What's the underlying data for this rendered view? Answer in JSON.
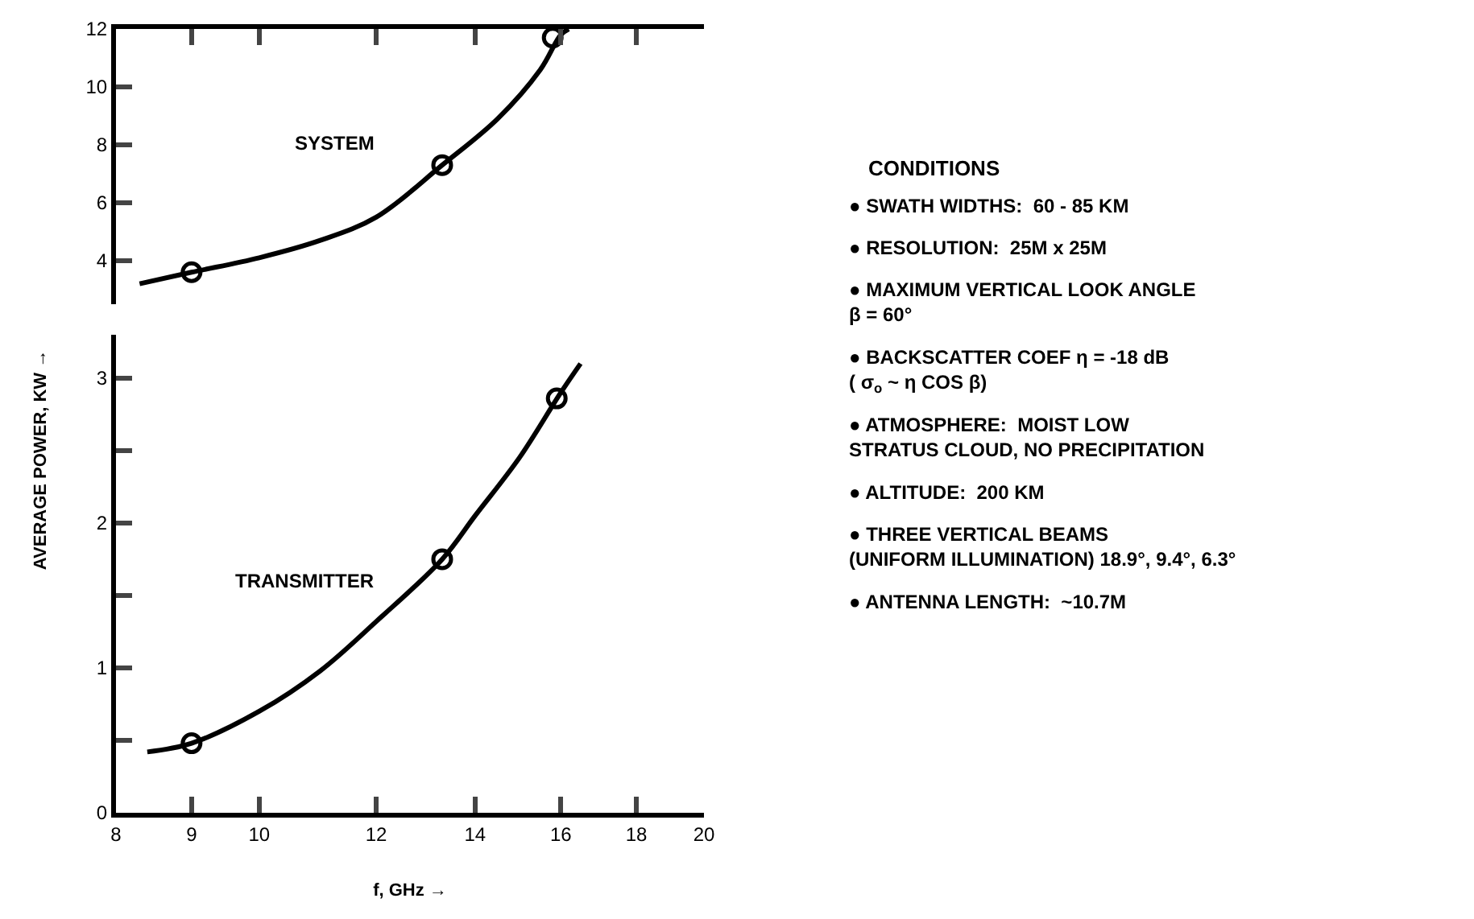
{
  "chart_data": [
    {
      "type": "line",
      "log": "x",
      "xlim": [
        8,
        20
      ],
      "ylim": [
        2.5,
        12
      ],
      "xticks": [
        {
          "value": 8,
          "label": null
        },
        {
          "value": 9,
          "label": null
        },
        {
          "value": 10,
          "label": null
        },
        {
          "value": 12,
          "label": null
        },
        {
          "value": 14,
          "label": null
        },
        {
          "value": 16,
          "label": null
        },
        {
          "value": 18,
          "label": null
        },
        {
          "value": 20,
          "label": null
        }
      ],
      "yticks": [
        4,
        6,
        8,
        10,
        12
      ],
      "tick_labels": "y",
      "ylabel": "AVERAGE POWER, KW →",
      "series": [
        {
          "name": "SYSTEM",
          "color": "#000000",
          "marker": "none",
          "x": [
            8.3,
            9,
            10,
            11,
            12,
            13.3,
            14.5,
            15.5,
            16,
            16.2
          ],
          "values": [
            3.2,
            3.6,
            4.1,
            4.7,
            5.5,
            7.3,
            8.9,
            10.6,
            11.8,
            12
          ]
        },
        {
          "type": "scatter",
          "color": "#000000",
          "marker": "circle",
          "x": [
            9,
            13.3,
            15.8
          ],
          "values": [
            3.6,
            7.3,
            11.7
          ]
        }
      ]
    },
    {
      "type": "line",
      "log": "x",
      "xlim": [
        8,
        20
      ],
      "ylim": [
        0,
        3.3
      ],
      "xticks": [
        8,
        9,
        10,
        12,
        14,
        16,
        18,
        20
      ],
      "yticks": [
        0,
        {
          "value": 0.5,
          "label": null
        },
        1,
        {
          "value": 1.5,
          "label": null
        },
        2,
        {
          "value": 2.5,
          "label": null
        },
        3
      ],
      "xlabel": "f, GHz →",
      "series": [
        {
          "name": "TRANSMITTER",
          "color": "#000000",
          "marker": "none",
          "x": [
            8.4,
            9,
            10,
            11,
            12,
            13.3,
            14,
            15,
            16,
            16.5
          ],
          "values": [
            0.42,
            0.48,
            0.7,
            0.98,
            1.32,
            1.75,
            2.05,
            2.45,
            2.9,
            3.1
          ]
        },
        {
          "type": "scatter",
          "color": "#000000",
          "marker": "circle",
          "x": [
            9,
            13.3,
            15.9
          ],
          "values": [
            0.48,
            1.75,
            2.86
          ]
        }
      ]
    },
    {
      "type": "other",
      "title": "CONDITIONS",
      "annotations": [
        "● SWATH WIDTHS:  60 - 85 KM",
        "● RESOLUTION:  25M x 25M",
        "● MAXIMUM VERTICAL LOOK ANGLE\nβ = 60°",
        "● BACKSCATTER COEF η = -18 dB\n( σ$_{o}$ ~ η COS β)",
        "● ATMOSPHERE:  MOIST LOW\nSTRATUS CLOUD, NO PRECIPITATION",
        "● ALTITUDE:  200 KM",
        "● THREE VERTICAL BEAMS\n(UNIFORM ILLUMINATION) 18.9°, 9.4°, 6.3°",
        "● ANTENNA LENGTH:  ~10.7M"
      ]
    }
  ]
}
